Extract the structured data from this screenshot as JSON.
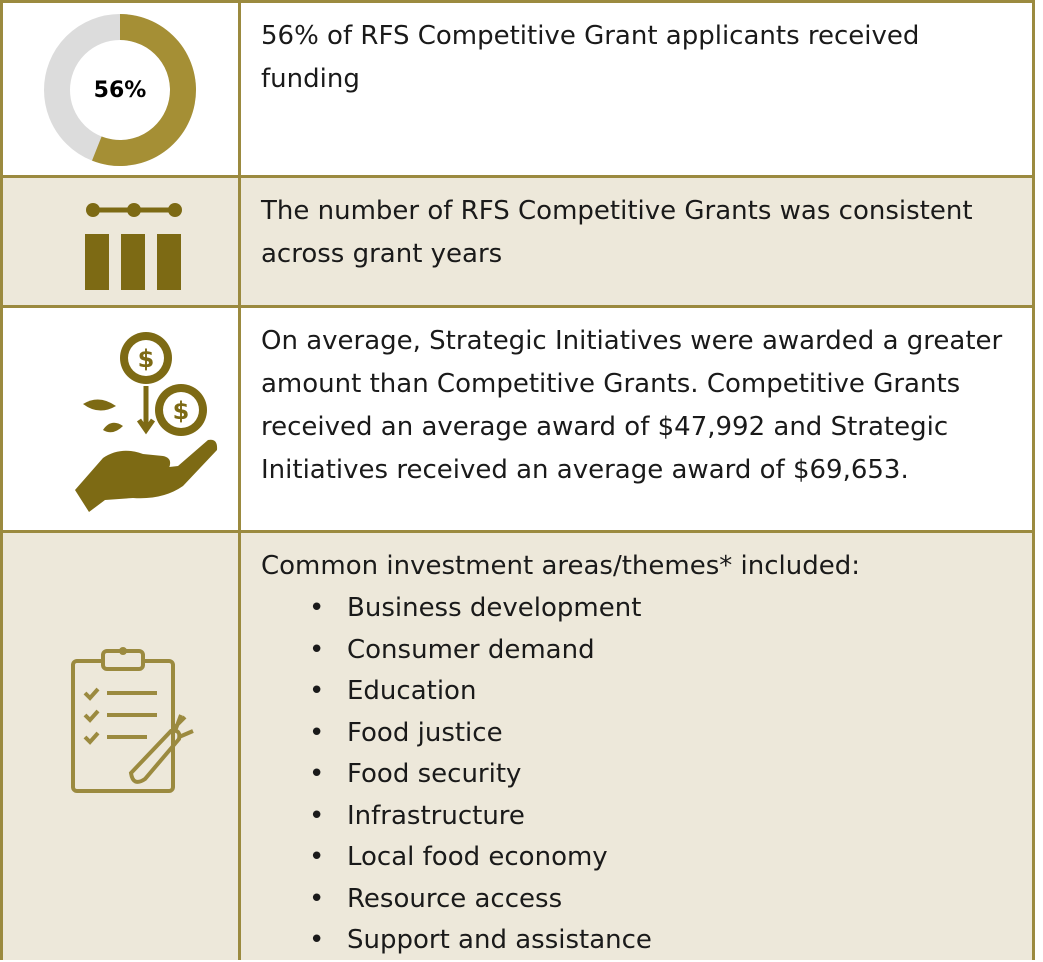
{
  "rows": [
    {
      "donut": {
        "value": 56,
        "label": "56%"
      },
      "text": "56% of RFS Competitive Grant applicants received funding"
    },
    {
      "text": "The number of RFS Competitive Grants was consistent across grant years"
    },
    {
      "text": "On average, Strategic Initiatives were awarded a greater amount than Competitive Grants. Competitive Grants received an average award of $47,992 and Strategic Initiatives received an average award of $69,653."
    },
    {
      "text": "Common investment areas/themes* included:",
      "items": [
        "Business development",
        "Consumer demand",
        "Education",
        "Food justice",
        "Food security",
        "Infrastructure",
        "Local food economy",
        "Resource access",
        "Support and assistance"
      ]
    }
  ]
}
